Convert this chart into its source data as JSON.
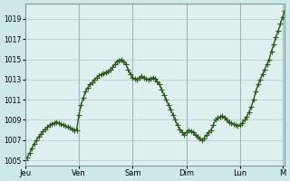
{
  "title": "",
  "xlabel": "",
  "ylabel": "",
  "background_color": "#cde8e8",
  "plot_bg_color": "#dff0f0",
  "line_color": "#2d5a1b",
  "marker": "+",
  "marker_size": 4,
  "line_width": 1.0,
  "yticks": [
    1005,
    1007,
    1009,
    1011,
    1013,
    1015,
    1017,
    1019
  ],
  "ylim": [
    1004.5,
    1020.5
  ],
  "day_labels": [
    "Jeu",
    "Ven",
    "Sam",
    "Dim",
    "Lun",
    "M"
  ],
  "day_positions": [
    0,
    24,
    48,
    72,
    96,
    115
  ],
  "grid_color": "#b0c8c8",
  "x": [
    0,
    1,
    2,
    3,
    4,
    5,
    6,
    7,
    8,
    9,
    10,
    11,
    12,
    13,
    14,
    15,
    16,
    17,
    18,
    19,
    20,
    21,
    22,
    23,
    24,
    25,
    26,
    27,
    28,
    29,
    30,
    31,
    32,
    33,
    34,
    35,
    36,
    37,
    38,
    39,
    40,
    41,
    42,
    43,
    44,
    45,
    46,
    47,
    48,
    49,
    50,
    51,
    52,
    53,
    54,
    55,
    56,
    57,
    58,
    59,
    60,
    61,
    62,
    63,
    64,
    65,
    66,
    67,
    68,
    69,
    70,
    71,
    72,
    73,
    74,
    75,
    76,
    77,
    78,
    79,
    80,
    81,
    82,
    83,
    84,
    85,
    86,
    87,
    88,
    89,
    90,
    91,
    92,
    93,
    94,
    95,
    96,
    97,
    98,
    99,
    100,
    101,
    102,
    103,
    104,
    105,
    106,
    107,
    108,
    109,
    110,
    111,
    112,
    113,
    114,
    115,
    116
  ],
  "y": [
    1005.0,
    1005.3,
    1005.7,
    1006.2,
    1006.6,
    1007.0,
    1007.3,
    1007.6,
    1007.9,
    1008.1,
    1008.3,
    1008.5,
    1008.6,
    1008.7,
    1008.8,
    1008.7,
    1008.6,
    1008.5,
    1008.4,
    1008.3,
    1008.2,
    1008.1,
    1008.0,
    1008.0,
    1009.5,
    1010.5,
    1011.2,
    1011.8,
    1012.2,
    1012.5,
    1012.7,
    1013.0,
    1013.2,
    1013.4,
    1013.5,
    1013.6,
    1013.7,
    1013.8,
    1014.0,
    1014.2,
    1014.5,
    1014.8,
    1014.9,
    1015.0,
    1014.8,
    1014.5,
    1014.0,
    1013.5,
    1013.2,
    1013.1,
    1013.0,
    1013.2,
    1013.3,
    1013.2,
    1013.1,
    1013.0,
    1013.1,
    1013.2,
    1013.1,
    1012.8,
    1012.5,
    1012.0,
    1011.5,
    1011.0,
    1010.5,
    1010.0,
    1009.5,
    1009.0,
    1008.5,
    1008.1,
    1007.8,
    1007.5,
    1007.8,
    1008.0,
    1007.9,
    1007.8,
    1007.5,
    1007.3,
    1007.2,
    1007.0,
    1007.2,
    1007.5,
    1007.8,
    1008.0,
    1008.5,
    1009.0,
    1009.2,
    1009.3,
    1009.4,
    1009.2,
    1009.0,
    1008.8,
    1008.7,
    1008.6,
    1008.5,
    1008.4,
    1008.5,
    1008.7,
    1009.0,
    1009.3,
    1009.8,
    1010.3,
    1011.0,
    1011.8,
    1012.5,
    1013.0,
    1013.5,
    1014.0,
    1014.5,
    1015.0,
    1015.8,
    1016.5,
    1017.2,
    1017.8,
    1018.5,
    1019.2,
    1019.8
  ]
}
